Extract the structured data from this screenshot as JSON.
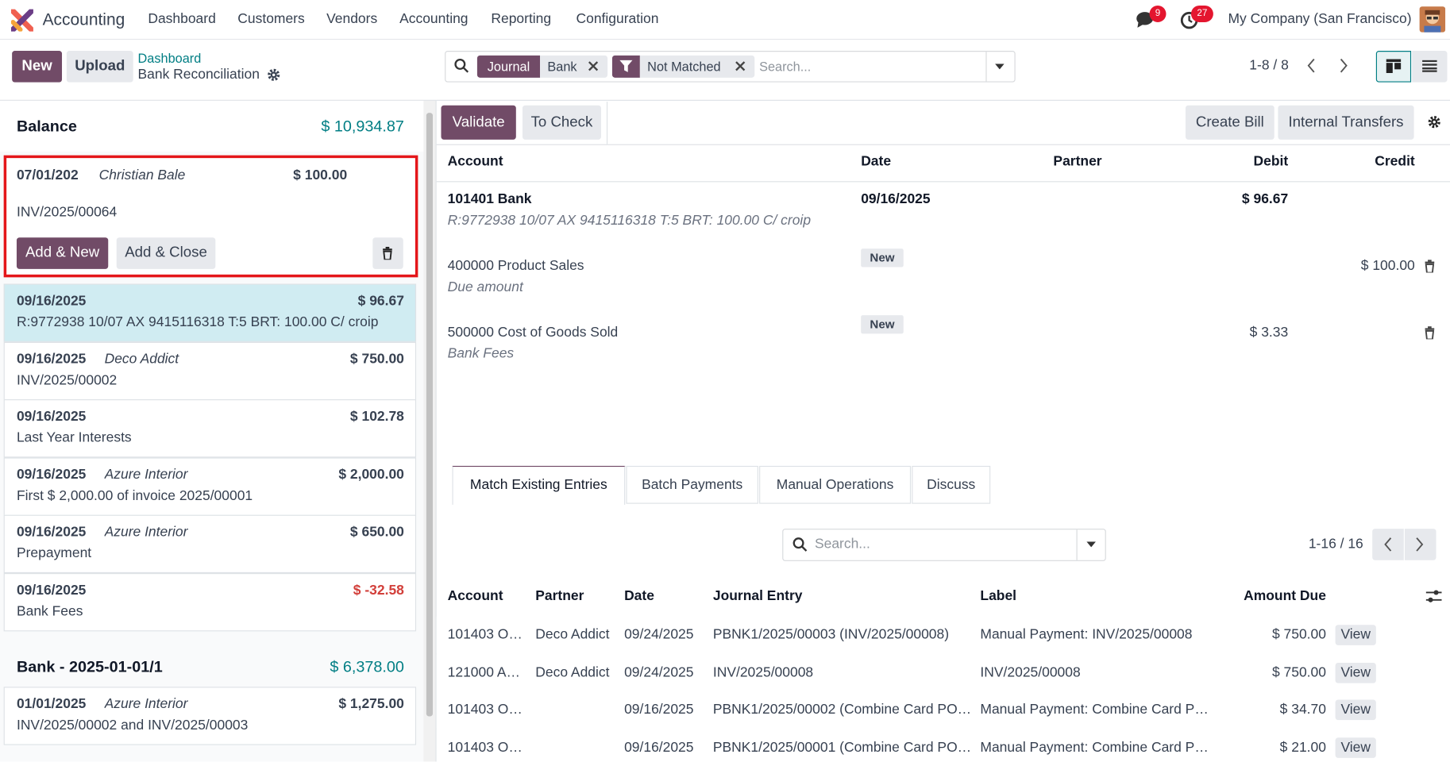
{
  "navbar": {
    "app": "Accounting",
    "menu": [
      "Dashboard",
      "Customers",
      "Vendors",
      "Accounting",
      "Reporting",
      "Configuration"
    ],
    "messages_badge": "9",
    "activities_badge": "27",
    "company": "My Company (San Francisco)"
  },
  "control_panel": {
    "buttons": [
      "New",
      "Upload"
    ],
    "breadcrumb": "Dashboard",
    "page_title": "Bank Reconciliation",
    "facets": [
      {
        "label": "Journal",
        "value": "Bank"
      },
      {
        "value": "Not Matched"
      }
    ],
    "search_placeholder": "Search...",
    "pager": "1-8 / 8"
  },
  "left_panel": {
    "balance_label": "Balance",
    "balance": "$ 10,934.87",
    "editing": {
      "date": "07/01/202",
      "partner": "Christian Bale",
      "amount": "$ 100.00",
      "label": "INV/2025/00064",
      "buttons": [
        "Add & New",
        "Add & Close"
      ]
    },
    "lines": [
      {
        "date": "09/16/2025",
        "amount": "$ 96.67",
        "label": "R:9772938 10/07 AX 9415116318 T:5 BRT: 100.00 C/ croip",
        "selected": true
      },
      {
        "date": "09/16/2025",
        "partner": "Deco Addict",
        "amount": "$ 750.00",
        "label": "INV/2025/00002"
      },
      {
        "date": "09/16/2025",
        "amount": "$ 102.78",
        "label": "Last Year Interests"
      },
      {
        "date": "09/16/2025",
        "partner": "Azure Interior",
        "amount": "$ 2,000.00",
        "label": "First $ 2,000.00 of invoice 2025/00001"
      },
      {
        "date": "09/16/2025",
        "partner": "Azure Interior",
        "amount": "$ 650.00",
        "label": "Prepayment"
      },
      {
        "date": "09/16/2025",
        "amount": "$ -32.58",
        "label": "Bank Fees",
        "amount_color": "#d23f3a"
      }
    ],
    "group": {
      "title": "Bank - 2025-01-01/1",
      "amount": "$ 6,378.00"
    },
    "group_lines": [
      {
        "date": "01/01/2025",
        "partner": "Azure Interior",
        "amount": "$ 1,275.00",
        "label": "INV/2025/00002 and INV/2025/00003"
      }
    ]
  },
  "right_panel": {
    "buttons": [
      "Validate",
      "To Check"
    ],
    "right_buttons": [
      "Create Bill",
      "Internal Transfers"
    ],
    "columns": [
      "Account",
      "Date",
      "Partner",
      "Debit",
      "Credit"
    ],
    "lines": [
      {
        "account": "101401 Bank",
        "description": "R:9772938 10/07 AX 9415116318 T:5 BRT: 100.00 C/ croip",
        "date": "09/16/2025",
        "debit": "$ 96.67"
      },
      {
        "account": "400000 Product Sales",
        "description": "Due amount",
        "badge": "New",
        "credit": "$ 100.00"
      },
      {
        "account": "500000 Cost of Goods Sold",
        "description": "Bank Fees",
        "badge": "New",
        "debit": "$ 3.33"
      }
    ],
    "tabs": [
      "Match Existing Entries",
      "Batch Payments",
      "Manual Operations",
      "Discuss"
    ],
    "search_placeholder": "Search...",
    "pager": "1-16 / 16",
    "match_columns": [
      "Account",
      "Partner",
      "Date",
      "Journal Entry",
      "Label",
      "Amount Due"
    ],
    "match_rows": [
      [
        "101403 O…",
        "Deco Addict",
        "09/24/2025",
        "PBNK1/2025/00003 (INV/2025/00008)",
        "Manual Payment: INV/2025/00008",
        "$ 750.00"
      ],
      [
        "121000 A…",
        "Deco Addict",
        "09/24/2025",
        "INV/2025/00008",
        "INV/2025/00008",
        "$ 750.00"
      ],
      [
        "101403 O…",
        null,
        "09/16/2025",
        "PBNK1/2025/00002 (Combine Card PO…",
        "Manual Payment: Combine Card P…",
        "$ 34.70"
      ],
      [
        "101403 O…",
        null,
        "09/16/2025",
        "PBNK1/2025/00001 (Combine Card PO…",
        "Manual Payment: Combine Card P…",
        "$ 21.00"
      ]
    ],
    "view_label": "View"
  }
}
